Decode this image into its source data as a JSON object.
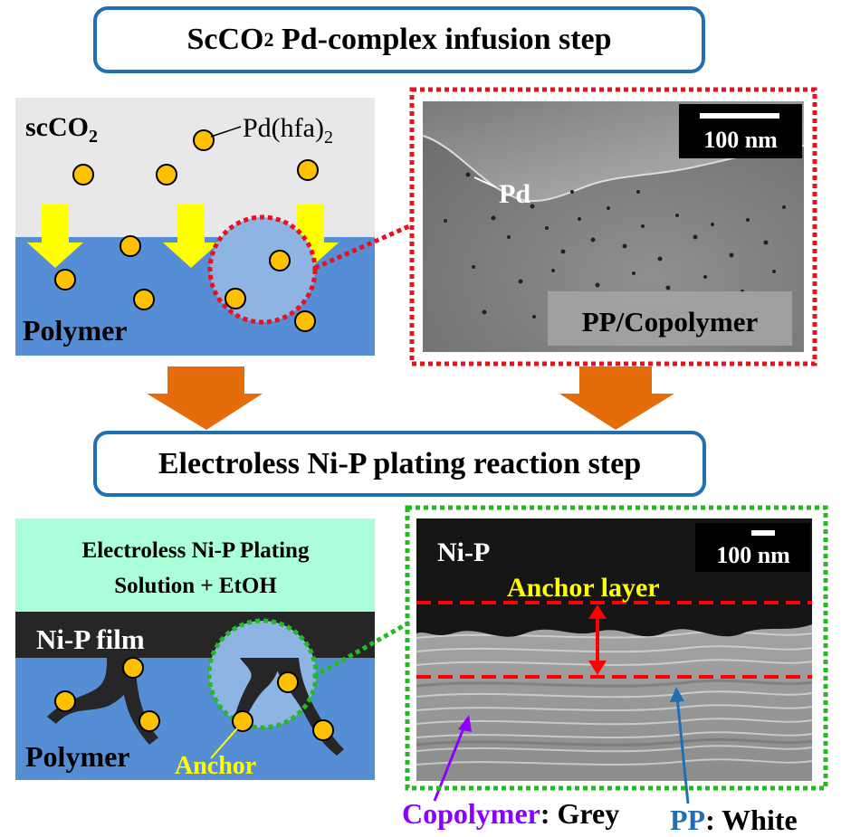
{
  "titles": {
    "infusion_prefix": "ScCO",
    "infusion_sub": "2",
    "infusion_rest": " Pd-complex infusion step",
    "plating": "Electroless Ni-P plating reaction step"
  },
  "infusion_panel": {
    "scco2_label": "scCO",
    "scco2_sub": "2",
    "complex_label": "Pd(hfa)",
    "complex_sub": "2",
    "polymer_label": "Polymer"
  },
  "tem_top": {
    "scale_bar": "100 nm",
    "pd_label": "Pd",
    "sample_label": "PP/Copolymer"
  },
  "plating_panel": {
    "solution_line1": "Electroless Ni-P Plating",
    "solution_line2": "Solution + EtOH",
    "film_label": "Ni-P film",
    "polymer_label": "Polymer",
    "anchor_label": "Anchor"
  },
  "tem_bottom": {
    "scale_bar": "100 nm",
    "nip_label": "Ni-P",
    "anchor_layer_label": "Anchor layer"
  },
  "legend": {
    "copolymer_label": "Copolymer",
    "copolymer_value": ": Grey",
    "pp_label": "PP",
    "pp_value": ": White"
  },
  "colors": {
    "frame_blue": "#1f6fb5",
    "polymer_blue": "#558ed5",
    "co2_grey": "#e8e8e8",
    "solution_mint": "#aaffd8",
    "nip_film": "#262626",
    "pd_particle": "#ffc000",
    "arrow_yellow": "#ffff00",
    "process_arrow": "#e46c0a",
    "zoom_red": "#e8111f",
    "zoom_green": "#22bb22",
    "copolymer_purple": "#8b00ff",
    "pp_blue": "#1f6fb5"
  }
}
